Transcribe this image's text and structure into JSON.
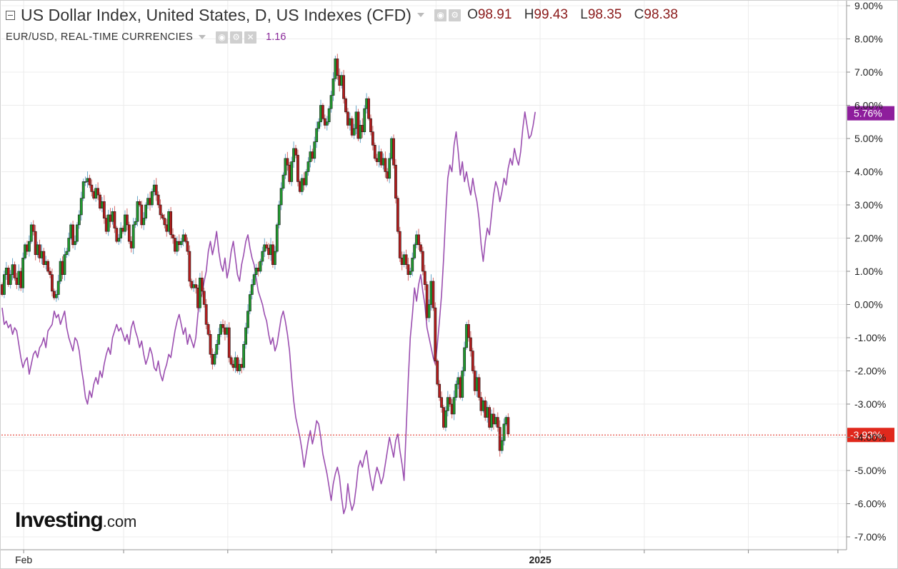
{
  "legend": {
    "main_title": "US Dollar Index, United States, D, US Indexes (CFD)",
    "ohlc": [
      {
        "key": "O",
        "value": "98.91"
      },
      {
        "key": "H",
        "value": "99.43"
      },
      {
        "key": "L",
        "value": "98.35"
      },
      {
        "key": "C",
        "value": "98.38"
      }
    ],
    "second_title": "EUR/USD, REAL-TIME CURRENCIES",
    "second_value": "1.16"
  },
  "logo": {
    "name": "Investing",
    "suffix": ".com"
  },
  "colors": {
    "up": "#1f9a2e",
    "down": "#b71c1c",
    "eurusd": "#9b4fb0",
    "last_price_badge": "#e0281c",
    "eurusd_badge": "#8e1e9c"
  },
  "chart_data": {
    "type": "candlestick+line",
    "y_axis": {
      "unit": "percent change",
      "min": -7,
      "max": 9,
      "tick_labels": [
        "9.00%",
        "8.00%",
        "7.00%",
        "6.00%",
        "5.00%",
        "4.00%",
        "3.00%",
        "2.00%",
        "1.00%",
        "0.00%",
        "-1.00%",
        "-2.00%",
        "-3.00%",
        "-4.00%",
        "-5.00%",
        "-6.00%",
        "-7.00%"
      ],
      "tick_values": [
        9,
        8,
        7,
        6,
        5,
        4,
        3,
        2,
        1,
        0,
        -1,
        -2,
        -3,
        -4,
        -5,
        -6,
        -7
      ]
    },
    "x_axis": {
      "tick_labels": [
        {
          "label": "Feb",
          "bold": false
        },
        {
          "label": "",
          "bold": false
        },
        {
          "label": "",
          "bold": false
        },
        {
          "label": "",
          "bold": false
        },
        {
          "label": "",
          "bold": false
        },
        {
          "label": "2025",
          "bold": true
        },
        {
          "label": "",
          "bold": false
        },
        {
          "label": "",
          "bold": false
        },
        {
          "label": "",
          "bold": false
        }
      ],
      "tick_index": [
        10,
        58,
        108,
        158,
        208,
        258,
        308,
        358,
        401
      ]
    },
    "grid": true,
    "series": [
      {
        "name": "US Dollar Index",
        "style": "candlestick",
        "close": [
          0.3,
          0.9,
          1.1,
          0.6,
          0.9,
          1.2,
          0.8,
          0.6,
          1.0,
          0.5,
          1.4,
          1.8,
          1.6,
          1.9,
          2.4,
          2.2,
          1.5,
          1.8,
          1.4,
          1.6,
          1.2,
          1.3,
          1.0,
          0.9,
          0.4,
          0.2,
          0.3,
          0.7,
          1.3,
          0.9,
          1.5,
          1.6,
          2.0,
          2.4,
          1.8,
          1.9,
          2.4,
          2.7,
          3.2,
          3.7,
          3.7,
          3.8,
          3.6,
          3.4,
          3.2,
          3.5,
          3.3,
          2.9,
          3.1,
          2.6,
          2.2,
          2.7,
          2.5,
          2.8,
          2.3,
          1.9,
          2.0,
          2.3,
          2.2,
          2.7,
          2.4,
          1.9,
          1.7,
          2.4,
          2.5,
          3.1,
          3.0,
          2.4,
          2.6,
          3.0,
          3.2,
          3.0,
          3.4,
          3.6,
          3.3,
          3.0,
          2.7,
          2.6,
          2.4,
          2.2,
          2.8,
          2.1,
          2.0,
          1.6,
          1.9,
          1.8,
          1.9,
          2.1,
          1.9,
          1.6,
          0.7,
          0.5,
          0.6,
          0.5,
          -0.1,
          0.8,
          0.4,
          0.0,
          -0.6,
          -0.9,
          -1.5,
          -1.8,
          -1.5,
          -1.2,
          -0.9,
          -0.6,
          -0.7,
          -0.9,
          -0.7,
          -1.6,
          -1.8,
          -1.9,
          -1.6,
          -2.0,
          -1.8,
          -1.9,
          -1.2,
          -0.7,
          -0.2,
          0.3,
          0.6,
          0.9,
          1.1,
          1.0,
          1.3,
          1.6,
          1.8,
          1.7,
          1.5,
          1.8,
          1.2,
          1.6,
          2.4,
          3.0,
          3.5,
          3.9,
          4.4,
          4.2,
          3.7,
          4.3,
          4.7,
          4.5,
          3.7,
          3.4,
          3.8,
          3.6,
          4.0,
          4.3,
          4.6,
          4.4,
          4.9,
          5.3,
          5.5,
          6.0,
          5.6,
          5.4,
          5.5,
          5.9,
          6.3,
          6.8,
          7.4,
          6.9,
          6.6,
          6.9,
          6.2,
          5.8,
          5.4,
          5.6,
          5.1,
          5.3,
          5.8,
          5.0,
          5.4,
          5.2,
          5.9,
          6.2,
          5.6,
          5.2,
          4.8,
          4.4,
          4.3,
          4.6,
          4.2,
          4.4,
          4.0,
          3.8,
          4.4,
          5.0,
          4.2,
          3.2,
          2.2,
          1.4,
          1.2,
          1.5,
          1.2,
          0.9,
          1.0,
          1.4,
          1.8,
          2.1,
          1.8,
          1.6,
          1.0,
          0.6,
          -0.4,
          0.0,
          0.7,
          -0.1,
          -1.7,
          -2.4,
          -2.8,
          -3.1,
          -3.7,
          -3.2,
          -2.8,
          -3.0,
          -3.3,
          -2.8,
          -2.4,
          -2.2,
          -2.8,
          -2.0,
          -1.3,
          -0.6,
          -1.0,
          -1.4,
          -2.0,
          -2.6,
          -2.2,
          -2.8,
          -3.2,
          -2.9,
          -3.4,
          -3.1,
          -3.7,
          -3.3,
          -3.6,
          -3.4,
          -3.7,
          -4.4,
          -4.1,
          -3.6,
          -3.4,
          -3.9
        ],
        "open_start": 0.6
      },
      {
        "name": "EUR/USD",
        "style": "line",
        "values": [
          -0.1,
          -0.6,
          -0.5,
          -0.7,
          -0.6,
          -0.9,
          -0.7,
          -0.8,
          -1.2,
          -1.6,
          -1.9,
          -1.7,
          -1.6,
          -2.1,
          -1.8,
          -1.5,
          -1.4,
          -1.6,
          -1.3,
          -1.2,
          -1.0,
          -1.3,
          -0.8,
          -0.7,
          -0.6,
          -0.2,
          -0.4,
          -0.3,
          -0.6,
          -0.4,
          -0.2,
          -0.7,
          -1.0,
          -1.2,
          -1.4,
          -1.0,
          -1.1,
          -1.4,
          -1.9,
          -2.3,
          -2.8,
          -3.0,
          -2.6,
          -2.8,
          -2.4,
          -2.2,
          -2.4,
          -2.0,
          -2.2,
          -1.8,
          -1.5,
          -1.3,
          -1.5,
          -1.0,
          -0.8,
          -0.6,
          -0.8,
          -0.7,
          -0.9,
          -1.1,
          -0.9,
          -1.2,
          -0.7,
          -0.5,
          -0.8,
          -1.0,
          -1.3,
          -1.1,
          -1.5,
          -1.8,
          -1.6,
          -1.3,
          -1.5,
          -1.9,
          -2.0,
          -1.7,
          -2.1,
          -2.3,
          -2.0,
          -1.8,
          -1.5,
          -1.6,
          -1.2,
          -0.8,
          -0.5,
          -0.3,
          -0.6,
          -0.9,
          -0.7,
          -1.2,
          -0.9,
          -1.1,
          -1.3,
          -1.0,
          -0.3,
          0.2,
          0.3,
          0.7,
          1.0,
          1.6,
          1.9,
          1.5,
          1.8,
          2.2,
          1.6,
          1.2,
          1.0,
          1.4,
          0.8,
          1.1,
          1.6,
          1.9,
          1.4,
          0.9,
          0.7,
          1.2,
          1.5,
          1.9,
          2.1,
          1.7,
          1.4,
          1.2,
          0.8,
          0.4,
          0.2,
          0.0,
          -0.3,
          -0.5,
          -0.9,
          -1.2,
          -1.0,
          -1.4,
          -1.2,
          -0.8,
          -0.4,
          -0.2,
          -0.5,
          -0.9,
          -1.4,
          -2.2,
          -2.9,
          -3.4,
          -3.7,
          -4.0,
          -4.4,
          -4.9,
          -4.5,
          -4.1,
          -3.8,
          -4.2,
          -3.9,
          -3.5,
          -3.6,
          -4.0,
          -4.5,
          -4.8,
          -5.1,
          -5.5,
          -5.9,
          -5.4,
          -5.1,
          -4.9,
          -5.2,
          -5.8,
          -6.3,
          -6.1,
          -5.4,
          -5.9,
          -6.2,
          -6.0,
          -5.5,
          -4.9,
          -4.7,
          -4.9,
          -4.6,
          -4.4,
          -4.9,
          -5.3,
          -5.6,
          -5.2,
          -4.9,
          -5.1,
          -5.4,
          -5.2,
          -4.8,
          -4.4,
          -4.0,
          -4.3,
          -4.6,
          -4.1,
          -3.9,
          -4.4,
          -4.8,
          -5.3,
          -3.8,
          -2.3,
          -1.0,
          -0.3,
          0.5,
          0.1,
          0.6,
          0.9,
          0.4,
          0.0,
          -0.7,
          -1.0,
          -1.3,
          -1.6,
          -1.8,
          -1.2,
          -0.5,
          0.3,
          1.4,
          2.7,
          3.8,
          4.2,
          4.0,
          4.8,
          5.2,
          4.6,
          3.9,
          4.3,
          3.7,
          4.0,
          3.6,
          3.3,
          3.8,
          3.4,
          3.1,
          2.6,
          1.8,
          1.3,
          1.9,
          2.3,
          2.1,
          2.7,
          3.3,
          3.7,
          3.5,
          3.1,
          3.4,
          3.8,
          3.6,
          4.1,
          4.4,
          4.2,
          4.7,
          4.4,
          4.2,
          4.6,
          5.3,
          5.8,
          5.4,
          5.0,
          5.1,
          5.4,
          5.8
        ]
      }
    ],
    "last_price_line": {
      "value": -3.93,
      "label": "-3.93%"
    },
    "eurusd_last": {
      "value": 5.76,
      "label": "5.76%"
    }
  }
}
